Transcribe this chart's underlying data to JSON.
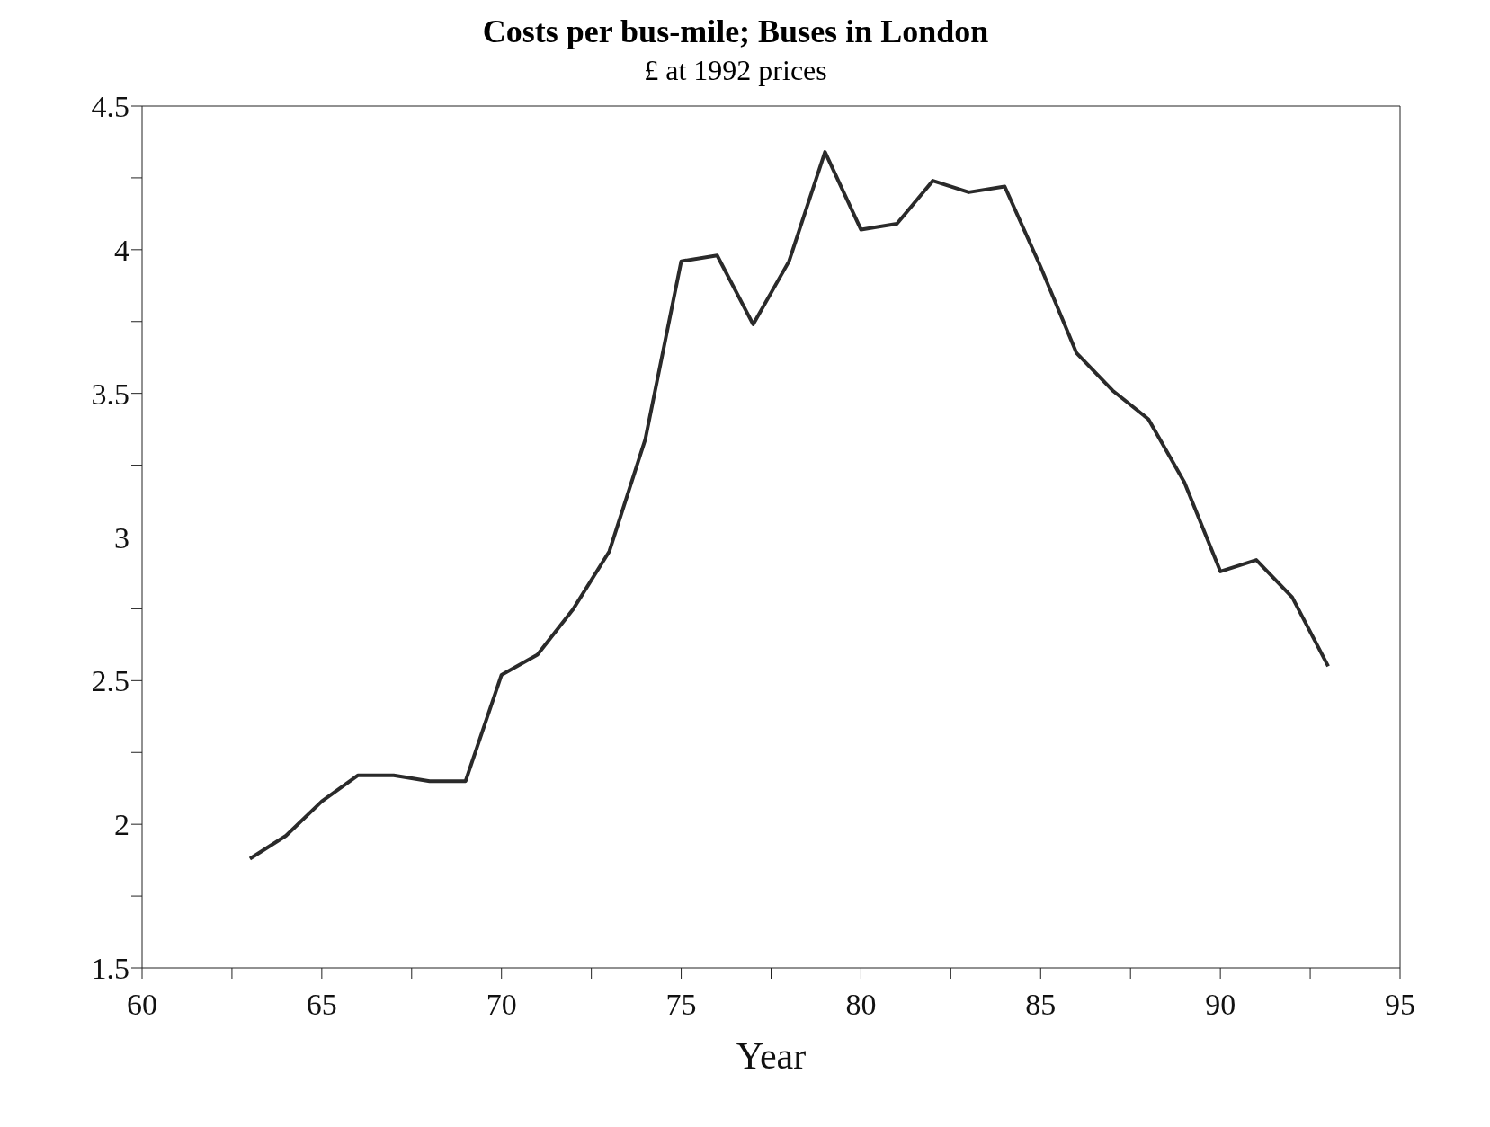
{
  "chart_data": {
    "type": "line",
    "title": "Costs per bus-mile; Buses in London",
    "subtitle": "£ at 1992 prices",
    "xlabel": "Year",
    "x": [
      63,
      64,
      65,
      66,
      67,
      68,
      69,
      70,
      71,
      72,
      73,
      74,
      75,
      76,
      77,
      78,
      79,
      80,
      81,
      82,
      83,
      84,
      85,
      86,
      87,
      88,
      89,
      90,
      91,
      92,
      93
    ],
    "series": [
      {
        "color": "#2a2a2a",
        "values": [
          1.88,
          1.96,
          2.08,
          2.17,
          2.17,
          2.15,
          2.15,
          2.52,
          2.59,
          2.75,
          2.95,
          3.34,
          3.96,
          3.98,
          3.74,
          3.96,
          4.34,
          4.07,
          4.09,
          4.24,
          4.2,
          4.22,
          3.94,
          3.64,
          3.51,
          3.41,
          3.19,
          2.88,
          2.92,
          2.79,
          2.55
        ]
      }
    ],
    "xlim": [
      60,
      95
    ],
    "xticks": [
      60,
      {
        "value": 62.5,
        "label": null
      },
      65,
      {
        "value": 67.5,
        "label": null
      },
      70,
      {
        "value": 72.5,
        "label": null
      },
      75,
      {
        "value": 77.5,
        "label": null
      },
      80,
      {
        "value": 82.5,
        "label": null
      },
      85,
      {
        "value": 87.5,
        "label": null
      },
      90,
      {
        "value": 92.5,
        "label": null
      },
      95
    ],
    "ylim": [
      1.5,
      4.5
    ],
    "yticks": [
      1.5,
      {
        "value": 1.75,
        "label": null
      },
      2,
      {
        "value": 2.25,
        "label": null
      },
      2.5,
      {
        "value": 2.75,
        "label": null
      },
      3,
      {
        "value": 3.25,
        "label": null
      },
      3.5,
      {
        "value": 3.75,
        "label": null
      },
      4,
      {
        "value": 4.25,
        "label": null
      },
      4.5
    ],
    "grid": false,
    "legend": false,
    "marker": "none",
    "line_style": "solid"
  }
}
